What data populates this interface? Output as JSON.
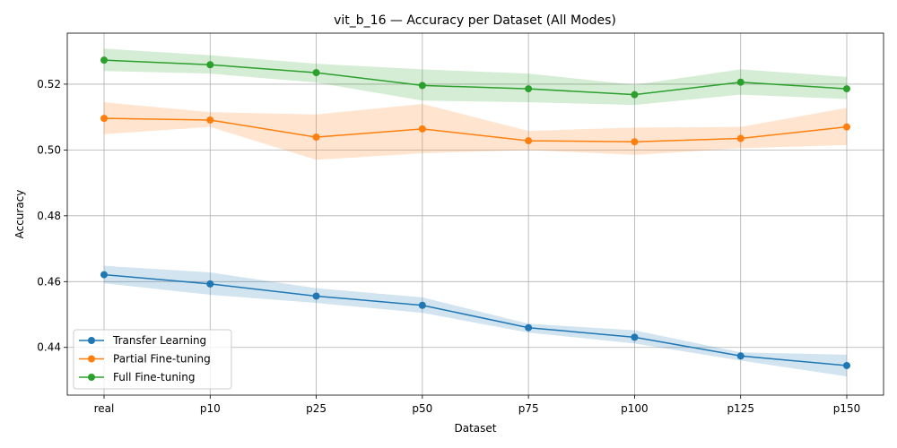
{
  "chart_data": {
    "type": "line",
    "title": "vit_b_16 — Accuracy per Dataset (All Modes)",
    "xlabel": "Dataset",
    "ylabel": "Accuracy",
    "categories": [
      "real",
      "p10",
      "p25",
      "p50",
      "p75",
      "p100",
      "p125",
      "p150"
    ],
    "ylim": [
      0.4255,
      0.5355
    ],
    "yticks": [
      0.44,
      0.46,
      0.48,
      0.5,
      0.52
    ],
    "ytick_labels": [
      "0.44",
      "0.46",
      "0.48",
      "0.50",
      "0.52"
    ],
    "grid": true,
    "legend_position": "lower-left",
    "series": [
      {
        "name": "Transfer Learning",
        "color": "#1f77b4",
        "band_color": "#1f77b4",
        "values": [
          0.4621,
          0.4593,
          0.4556,
          0.4528,
          0.446,
          0.4431,
          0.4374,
          0.4345
        ],
        "lower": [
          0.4595,
          0.456,
          0.4535,
          0.4505,
          0.4445,
          0.4412,
          0.436,
          0.4312
        ],
        "upper": [
          0.4648,
          0.4628,
          0.458,
          0.4552,
          0.4472,
          0.4452,
          0.4385,
          0.4378
        ]
      },
      {
        "name": "Partial Fine-tuning",
        "color": "#ff7f0e",
        "band_color": "#ff7f0e",
        "values": [
          0.5096,
          0.5091,
          0.5039,
          0.5064,
          0.5028,
          0.5025,
          0.5035,
          0.507
        ],
        "lower": [
          0.5048,
          0.507,
          0.497,
          0.499,
          0.5,
          0.4985,
          0.5005,
          0.5015
        ],
        "upper": [
          0.5145,
          0.5115,
          0.5108,
          0.514,
          0.5058,
          0.5068,
          0.507,
          0.5128
        ]
      },
      {
        "name": "Full Fine-tuning",
        "color": "#2ca02c",
        "band_color": "#2ca02c",
        "values": [
          0.5273,
          0.5259,
          0.5235,
          0.5196,
          0.5186,
          0.5168,
          0.5206,
          0.5186
        ],
        "lower": [
          0.524,
          0.5232,
          0.5205,
          0.515,
          0.5145,
          0.5137,
          0.5168,
          0.5155
        ],
        "upper": [
          0.5308,
          0.5288,
          0.5262,
          0.5245,
          0.5232,
          0.5198,
          0.5245,
          0.5222
        ]
      }
    ]
  }
}
